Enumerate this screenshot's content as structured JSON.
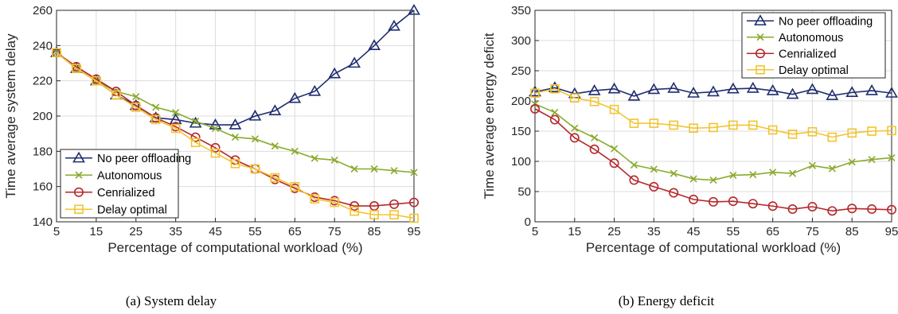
{
  "chart_data": [
    {
      "type": "line",
      "caption": "(a)  System delay",
      "xlabel": "Percentage of computational workload (%)",
      "ylabel": "Time average system delay",
      "xlim": [
        5,
        95
      ],
      "ylim": [
        140,
        260
      ],
      "xticks": [
        5,
        15,
        25,
        35,
        45,
        55,
        65,
        75,
        85,
        95
      ],
      "yticks": [
        140,
        160,
        180,
        200,
        220,
        240,
        260
      ],
      "grid": true,
      "legend_position": "bottom-left",
      "x": [
        5,
        10,
        15,
        20,
        25,
        30,
        35,
        40,
        45,
        50,
        55,
        60,
        65,
        70,
        75,
        80,
        85,
        90,
        95
      ],
      "series": [
        {
          "name": "No peer offloading",
          "color": "#1f2d6e",
          "marker": "triangle",
          "values": [
            236,
            227,
            220,
            212,
            206,
            199,
            198,
            196,
            195,
            195,
            200,
            203,
            210,
            214,
            224,
            230,
            240,
            251,
            260
          ]
        },
        {
          "name": "Autonomous",
          "color": "#8aaa2e",
          "marker": "x",
          "values": [
            236,
            227,
            220,
            214,
            211,
            205,
            202,
            197,
            193,
            188,
            187,
            183,
            180,
            176,
            175,
            170,
            170,
            169,
            168
          ]
        },
        {
          "name": "Cenrialized",
          "color": "#b5282c",
          "marker": "circle",
          "values": [
            236,
            228,
            221,
            214,
            206,
            199,
            194,
            188,
            182,
            175,
            170,
            164,
            159,
            154,
            152,
            149,
            149,
            150,
            151
          ]
        },
        {
          "name": "Delay optimal",
          "color": "#f2c431",
          "marker": "square",
          "values": [
            236,
            227,
            220,
            212,
            205,
            198,
            193,
            185,
            179,
            173,
            170,
            165,
            160,
            153,
            151,
            146,
            144,
            144,
            142
          ]
        }
      ]
    },
    {
      "type": "line",
      "caption": "(b)  Energy deficit",
      "xlabel": "Percentage of computational workload (%)",
      "ylabel": "Time average energy deficit",
      "xlim": [
        5,
        95
      ],
      "ylim": [
        0,
        350
      ],
      "xticks": [
        5,
        15,
        25,
        35,
        45,
        55,
        65,
        75,
        85,
        95
      ],
      "yticks": [
        0,
        50,
        100,
        150,
        200,
        250,
        300,
        350
      ],
      "grid": true,
      "legend_position": "top-right",
      "x": [
        5,
        10,
        15,
        20,
        25,
        30,
        35,
        40,
        45,
        50,
        55,
        60,
        65,
        70,
        75,
        80,
        85,
        90,
        95
      ],
      "series": [
        {
          "name": "No peer offloading",
          "color": "#1f2d6e",
          "marker": "triangle",
          "values": [
            215,
            222,
            212,
            217,
            220,
            208,
            219,
            221,
            213,
            215,
            220,
            221,
            217,
            211,
            219,
            209,
            214,
            217,
            213
          ]
        },
        {
          "name": "Autonomous",
          "color": "#8aaa2e",
          "marker": "x",
          "values": [
            195,
            181,
            155,
            139,
            121,
            94,
            87,
            80,
            71,
            69,
            77,
            78,
            82,
            80,
            93,
            88,
            99,
            103,
            106
          ]
        },
        {
          "name": "Cenrialized",
          "color": "#b5282c",
          "marker": "circle",
          "values": [
            187,
            169,
            139,
            120,
            97,
            69,
            58,
            48,
            37,
            33,
            34,
            30,
            26,
            21,
            25,
            18,
            22,
            21,
            20
          ]
        },
        {
          "name": "Delay optimal",
          "color": "#f2c431",
          "marker": "square",
          "values": [
            213,
            220,
            205,
            199,
            186,
            163,
            163,
            160,
            155,
            156,
            160,
            160,
            152,
            145,
            149,
            140,
            147,
            150,
            151
          ]
        }
      ]
    }
  ]
}
